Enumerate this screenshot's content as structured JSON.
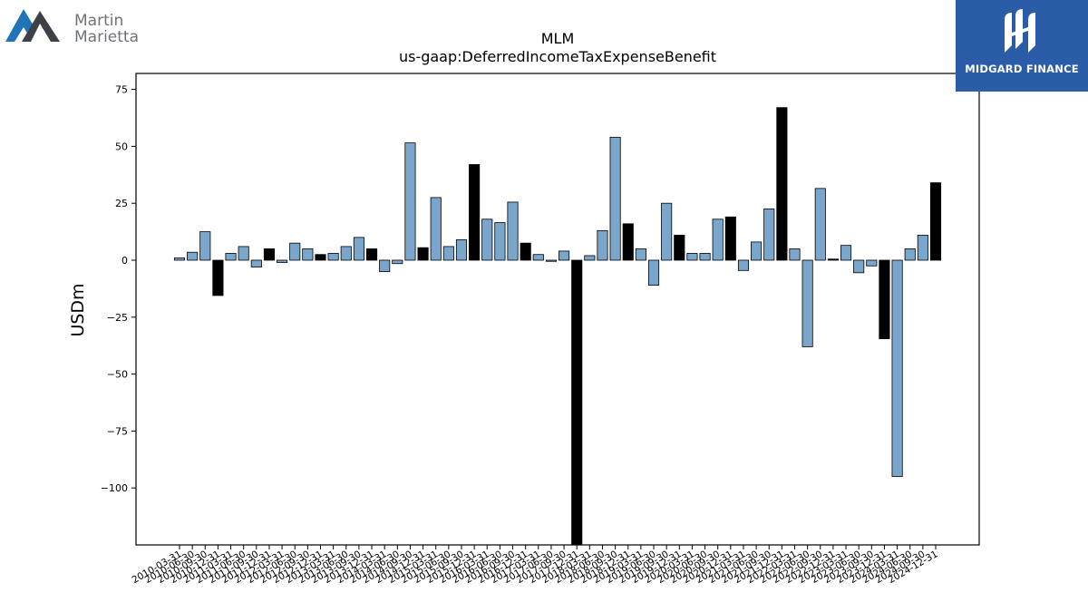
{
  "brand": {
    "name_line1": "Martin",
    "name_line2": "Marietta",
    "accent": "#1f73b7",
    "dark": "#3d4147"
  },
  "partner": {
    "name": "MIDGARD FINANCE",
    "bg": "#2b5ca8"
  },
  "chart_data": {
    "type": "bar",
    "title": "MLM",
    "subtitle": "us-gaap:DeferredIncomeTaxExpenseBenefit",
    "ylabel": "USDm",
    "xlabel": "",
    "ylim": [
      -125,
      82
    ],
    "yticks": [
      75,
      50,
      25,
      0,
      -25,
      -50,
      -75,
      -100
    ],
    "ytick_labels": [
      "75",
      "50",
      "25",
      "0",
      "−25",
      "−50",
      "−75",
      "−100"
    ],
    "grid": false,
    "legend": "none",
    "colors": {
      "regular": "#7aa6cc",
      "q4": "#000000",
      "edge": "#000000"
    },
    "categories": [
      "2010-03-31",
      "2010-06-30",
      "2010-09-30",
      "2010-12-31",
      "2011-03-31",
      "2011-06-30",
      "2011-09-30",
      "2011-12-31",
      "2012-03-31",
      "2012-06-30",
      "2012-09-30",
      "2012-12-31",
      "2013-03-31",
      "2013-06-30",
      "2013-09-30",
      "2013-12-31",
      "2014-03-31",
      "2014-06-30",
      "2014-09-30",
      "2014-12-31",
      "2015-03-31",
      "2015-06-30",
      "2015-09-30",
      "2015-12-31",
      "2016-03-31",
      "2016-06-30",
      "2016-09-30",
      "2016-12-31",
      "2017-03-31",
      "2017-06-30",
      "2017-09-30",
      "2017-12-31",
      "2018-03-31",
      "2018-06-30",
      "2018-09-30",
      "2018-12-31",
      "2019-03-31",
      "2019-06-30",
      "2019-09-30",
      "2019-12-31",
      "2020-03-31",
      "2020-06-30",
      "2020-09-30",
      "2020-12-31",
      "2021-03-31",
      "2021-06-30",
      "2021-09-30",
      "2021-12-31",
      "2022-03-31",
      "2022-06-30",
      "2022-09-30",
      "2022-12-31",
      "2023-03-31",
      "2023-06-30",
      "2023-09-30",
      "2023-12-31",
      "2024-03-31",
      "2024-06-30",
      "2024-09-30",
      "2024-12-31"
    ],
    "values": [
      1,
      3.5,
      12.5,
      -15.5,
      3,
      6,
      -3,
      5,
      -1,
      7.5,
      5,
      2.5,
      3,
      6,
      10,
      5,
      -5,
      -1.5,
      51.5,
      5.5,
      27.5,
      6,
      9,
      42,
      18,
      16.5,
      25.5,
      7.5,
      2.5,
      -0.5,
      4,
      -125,
      2,
      13,
      54,
      16,
      5,
      -11,
      25,
      11,
      3,
      3,
      18,
      19,
      -4.5,
      8,
      22.5,
      67,
      5,
      -38,
      31.5,
      0.5,
      6.5,
      -5.5,
      -2.5,
      -34.5,
      -95,
      5,
      11,
      34
    ]
  }
}
